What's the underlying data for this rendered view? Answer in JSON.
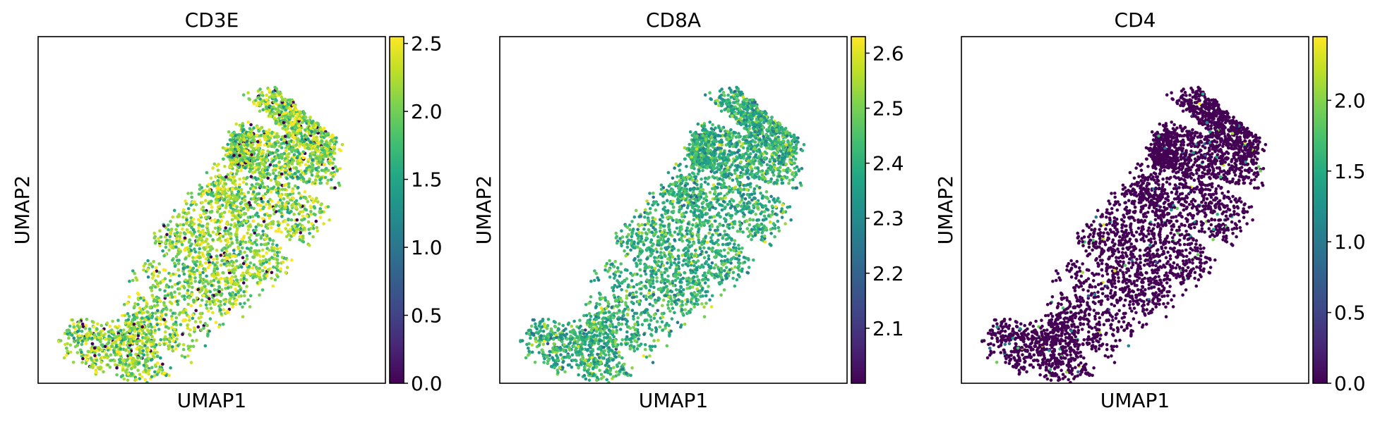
{
  "chart_data": [
    {
      "type": "scatter",
      "title": "CD3E",
      "xlabel": "UMAP1",
      "ylabel": "UMAP2",
      "colormap": "viridis",
      "colorbar": {
        "min": 0.0,
        "max": 2.55,
        "ticks": [
          "0.0",
          "0.5",
          "1.0",
          "1.5",
          "2.0",
          "2.5"
        ]
      },
      "expression_profile": {
        "typical": 2.1,
        "spread": 0.35,
        "zero_fraction": 0.04
      },
      "grid": false,
      "n_points_approx": 4000
    },
    {
      "type": "scatter",
      "title": "CD8A",
      "xlabel": "UMAP1",
      "ylabel": "UMAP2",
      "colormap": "viridis",
      "colorbar": {
        "min": 2.0,
        "max": 2.63,
        "ticks": [
          "2.1",
          "2.2",
          "2.3",
          "2.4",
          "2.5",
          "2.6"
        ]
      },
      "expression_profile": {
        "typical": 2.4,
        "spread": 0.08,
        "zero_fraction": 0.0
      },
      "grid": false,
      "n_points_approx": 4000
    },
    {
      "type": "scatter",
      "title": "CD4",
      "xlabel": "UMAP1",
      "ylabel": "UMAP2",
      "colormap": "viridis",
      "colorbar": {
        "min": 0.0,
        "max": 2.45,
        "ticks": [
          "0.0",
          "0.5",
          "1.0",
          "1.5",
          "2.0"
        ]
      },
      "expression_profile": {
        "typical": 0.0,
        "spread": 0.0,
        "zero_fraction": 0.97
      },
      "grid": false,
      "n_points_approx": 4000
    }
  ]
}
